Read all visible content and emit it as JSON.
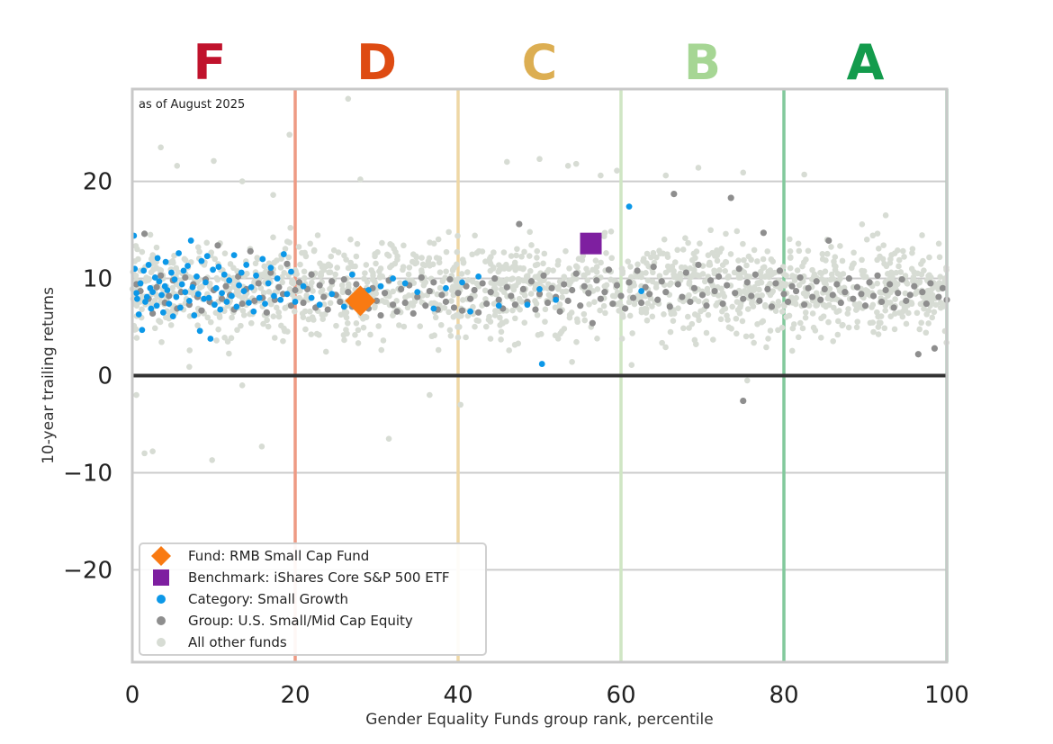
{
  "chart_data": {
    "type": "scatter",
    "annotation": "as of August 2025",
    "xlabel": "Gender Equality Funds group rank, percentile",
    "ylabel": "10-year trailing returns",
    "xlim": [
      0,
      100
    ],
    "ylim": [
      -29.5,
      29.5
    ],
    "x_ticks": [
      "0",
      "20",
      "40",
      "60",
      "80",
      "100"
    ],
    "y_ticks": [
      {
        "value": 20,
        "label": "20"
      },
      {
        "value": 10,
        "label": "10"
      },
      {
        "value": 0,
        "label": "0"
      },
      {
        "value": -10,
        "label": "−10"
      },
      {
        "value": -20,
        "label": "−20"
      }
    ],
    "grid": "horizontal",
    "grades": [
      {
        "label": "F",
        "center": 9.5,
        "color": "#c0122c",
        "boundary": 20,
        "line_color": "#ee9a84"
      },
      {
        "label": "D",
        "center": 30,
        "color": "#de4b12",
        "boundary": 40,
        "line_color": "#eed7a5"
      },
      {
        "label": "C",
        "center": 50,
        "color": "#dcae52",
        "boundary": 60,
        "line_color": "#cfe6c4"
      },
      {
        "label": "B",
        "center": 70,
        "color": "#a6d694",
        "boundary": 80,
        "line_color": "#82c99c"
      },
      {
        "label": "A",
        "center": 90,
        "color": "#139b4c",
        "boundary": 100,
        "line_color": "#92d0a8"
      }
    ],
    "legend": {
      "placement": "lower-left",
      "entries": [
        {
          "label": "Fund: RMB Small Cap Fund",
          "marker": "diamond",
          "color": "#f97a12"
        },
        {
          "label": "Benchmark: iShares Core S&P 500 ETF",
          "marker": "square",
          "color": "#7e1fa0"
        },
        {
          "label": "Category: Small Growth",
          "marker": "dot",
          "color": "#0c98e8"
        },
        {
          "label": "Group: U.S. Small/Mid Cap Equity",
          "marker": "dot",
          "color": "#8e8e8e"
        },
        {
          "label": "All other funds",
          "marker": "dot",
          "color": "#d7dcd4"
        }
      ]
    },
    "fund": {
      "x": 28,
      "y": 7.7
    },
    "benchmark": {
      "x": 56.3,
      "y": 13.6
    },
    "category_points": [
      [
        0.2,
        14.4
      ],
      [
        0.3,
        11.0
      ],
      [
        0.5,
        8.5
      ],
      [
        0.6,
        7.9
      ],
      [
        0.8,
        6.3
      ],
      [
        1.0,
        9.5
      ],
      [
        1.2,
        4.7
      ],
      [
        1.4,
        10.8
      ],
      [
        1.6,
        7.6
      ],
      [
        1.8,
        8.1
      ],
      [
        2.0,
        11.4
      ],
      [
        2.2,
        9.0
      ],
      [
        2.3,
        6.9
      ],
      [
        2.5,
        8.6
      ],
      [
        2.8,
        10.1
      ],
      [
        3.0,
        7.2
      ],
      [
        3.1,
        12.1
      ],
      [
        3.3,
        9.7
      ],
      [
        3.6,
        8.3
      ],
      [
        3.8,
        6.5
      ],
      [
        4.0,
        9.2
      ],
      [
        4.1,
        11.7
      ],
      [
        4.3,
        8.8
      ],
      [
        4.5,
        7.4
      ],
      [
        4.8,
        10.6
      ],
      [
        5.0,
        6.1
      ],
      [
        5.2,
        9.9
      ],
      [
        5.4,
        8.1
      ],
      [
        5.7,
        12.6
      ],
      [
        5.9,
        7.0
      ],
      [
        6.1,
        9.4
      ],
      [
        6.3,
        10.8
      ],
      [
        6.5,
        8.6
      ],
      [
        6.8,
        11.3
      ],
      [
        7.0,
        7.7
      ],
      [
        7.2,
        13.9
      ],
      [
        7.4,
        9.1
      ],
      [
        7.6,
        6.2
      ],
      [
        7.9,
        10.2
      ],
      [
        8.1,
        8.4
      ],
      [
        8.3,
        4.6
      ],
      [
        8.5,
        11.8
      ],
      [
        8.8,
        7.9
      ],
      [
        9.0,
        9.6
      ],
      [
        9.2,
        12.3
      ],
      [
        9.4,
        8.0
      ],
      [
        9.6,
        3.8
      ],
      [
        9.9,
        10.9
      ],
      [
        10.1,
        7.3
      ],
      [
        10.3,
        9.0
      ],
      [
        10.6,
        11.2
      ],
      [
        10.8,
        6.8
      ],
      [
        11.0,
        8.5
      ],
      [
        11.3,
        10.4
      ],
      [
        11.6,
        7.6
      ],
      [
        11.9,
        9.8
      ],
      [
        12.2,
        8.2
      ],
      [
        12.5,
        12.4
      ],
      [
        12.8,
        7.1
      ],
      [
        13.1,
        9.3
      ],
      [
        13.4,
        10.6
      ],
      [
        13.7,
        8.7
      ],
      [
        14.0,
        11.4
      ],
      [
        14.3,
        7.5
      ],
      [
        14.6,
        9.1
      ],
      [
        14.9,
        6.6
      ],
      [
        15.2,
        10.3
      ],
      [
        15.6,
        8.0
      ],
      [
        16.0,
        12.0
      ],
      [
        16.3,
        7.4
      ],
      [
        16.7,
        9.5
      ],
      [
        17.0,
        11.1
      ],
      [
        17.4,
        8.2
      ],
      [
        17.8,
        10.0
      ],
      [
        18.2,
        7.8
      ],
      [
        18.6,
        12.5
      ],
      [
        19.0,
        8.4
      ],
      [
        19.5,
        10.7
      ],
      [
        20.0,
        7.6
      ],
      [
        21.0,
        9.2
      ],
      [
        22.0,
        8.0
      ],
      [
        23.0,
        7.3
      ],
      [
        24.5,
        8.4
      ],
      [
        26.0,
        7.1
      ],
      [
        27.0,
        10.4
      ],
      [
        29.0,
        8.8
      ],
      [
        30.5,
        9.2
      ],
      [
        32.0,
        10.0
      ],
      [
        33.5,
        9.5
      ],
      [
        35.0,
        8.6
      ],
      [
        37.0,
        6.9
      ],
      [
        38.5,
        9.0
      ],
      [
        40.5,
        9.6
      ],
      [
        41.5,
        6.6
      ],
      [
        42.5,
        10.2
      ],
      [
        45.0,
        7.2
      ],
      [
        48.5,
        7.3
      ],
      [
        50.0,
        8.9
      ],
      [
        50.3,
        1.2
      ],
      [
        52.0,
        7.8
      ],
      [
        61.0,
        17.4
      ],
      [
        62.5,
        8.7
      ]
    ],
    "group_points": [
      [
        0.5,
        9.4
      ],
      [
        1.0,
        8.7
      ],
      [
        1.5,
        14.6
      ],
      [
        2.0,
        7.9
      ],
      [
        2.5,
        6.4
      ],
      [
        3.0,
        9.1
      ],
      [
        3.5,
        10.3
      ],
      [
        4.0,
        7.5
      ],
      [
        4.5,
        8.2
      ],
      [
        5.0,
        9.8
      ],
      [
        5.5,
        6.9
      ],
      [
        6.0,
        8.6
      ],
      [
        6.5,
        10.1
      ],
      [
        7.0,
        7.3
      ],
      [
        7.5,
        9.4
      ],
      [
        8.0,
        8.1
      ],
      [
        8.5,
        6.7
      ],
      [
        9.0,
        9.9
      ],
      [
        9.5,
        7.6
      ],
      [
        10.0,
        8.8
      ],
      [
        10.5,
        13.4
      ],
      [
        11.0,
        7.9
      ],
      [
        11.5,
        9.2
      ],
      [
        12.0,
        8.3
      ],
      [
        12.5,
        6.8
      ],
      [
        13.0,
        10.2
      ],
      [
        13.5,
        7.4
      ],
      [
        14.0,
        8.9
      ],
      [
        14.5,
        12.8
      ],
      [
        15.0,
        7.7
      ],
      [
        15.5,
        9.5
      ],
      [
        16.0,
        8.0
      ],
      [
        16.5,
        6.5
      ],
      [
        17.0,
        10.6
      ],
      [
        17.5,
        7.8
      ],
      [
        18.0,
        9.1
      ],
      [
        18.5,
        8.4
      ],
      [
        19.0,
        11.5
      ],
      [
        19.5,
        7.2
      ],
      [
        20.0,
        8.8
      ],
      [
        20.5,
        9.6
      ],
      [
        21.0,
        7.5
      ],
      [
        21.5,
        8.9
      ],
      [
        22.0,
        10.4
      ],
      [
        22.5,
        7.0
      ],
      [
        23.0,
        9.3
      ],
      [
        23.5,
        8.1
      ],
      [
        24.0,
        6.8
      ],
      [
        24.5,
        9.7
      ],
      [
        25.0,
        8.3
      ],
      [
        25.5,
        7.6
      ],
      [
        26.0,
        9.9
      ],
      [
        26.5,
        8.6
      ],
      [
        27.0,
        7.1
      ],
      [
        27.5,
        9.4
      ],
      [
        28.5,
        8.7
      ],
      [
        29.0,
        6.9
      ],
      [
        29.5,
        9.0
      ],
      [
        30.0,
        7.7
      ],
      [
        30.5,
        6.2
      ],
      [
        31.0,
        8.5
      ],
      [
        31.5,
        9.8
      ],
      [
        32.0,
        7.3
      ],
      [
        32.5,
        6.6
      ],
      [
        33.0,
        8.9
      ],
      [
        33.5,
        7.5
      ],
      [
        34.0,
        9.3
      ],
      [
        34.5,
        6.4
      ],
      [
        35.0,
        8.1
      ],
      [
        35.5,
        10.1
      ],
      [
        36.0,
        7.2
      ],
      [
        36.5,
        8.7
      ],
      [
        37.0,
        9.6
      ],
      [
        37.5,
        6.8
      ],
      [
        38.0,
        8.3
      ],
      [
        38.5,
        7.6
      ],
      [
        39.0,
        9.9
      ],
      [
        39.5,
        7.0
      ],
      [
        40.0,
        8.5
      ],
      [
        40.5,
        6.7
      ],
      [
        41.0,
        9.2
      ],
      [
        41.5,
        7.9
      ],
      [
        42.0,
        8.8
      ],
      [
        42.5,
        6.5
      ],
      [
        43.0,
        9.5
      ],
      [
        43.5,
        7.4
      ],
      [
        44.0,
        8.6
      ],
      [
        44.5,
        10.0
      ],
      [
        45.0,
        7.8
      ],
      [
        45.5,
        6.9
      ],
      [
        46.0,
        9.1
      ],
      [
        46.5,
        8.2
      ],
      [
        47.0,
        7.3
      ],
      [
        47.5,
        15.6
      ],
      [
        48.0,
        8.9
      ],
      [
        48.5,
        7.6
      ],
      [
        49.0,
        9.7
      ],
      [
        49.5,
        6.8
      ],
      [
        50.0,
        8.4
      ],
      [
        50.5,
        10.3
      ],
      [
        51.0,
        7.5
      ],
      [
        51.5,
        9.0
      ],
      [
        52.0,
        8.1
      ],
      [
        52.5,
        6.6
      ],
      [
        53.0,
        9.4
      ],
      [
        53.5,
        7.7
      ],
      [
        54.0,
        8.8
      ],
      [
        54.5,
        10.5
      ],
      [
        55.0,
        7.2
      ],
      [
        55.5,
        9.2
      ],
      [
        56.0,
        8.5
      ],
      [
        56.5,
        5.4
      ],
      [
        57.0,
        9.8
      ],
      [
        57.5,
        7.9
      ],
      [
        58.0,
        8.6
      ],
      [
        58.5,
        10.9
      ],
      [
        59.0,
        7.4
      ],
      [
        59.5,
        9.3
      ],
      [
        60.0,
        8.2
      ],
      [
        60.5,
        6.9
      ],
      [
        61.0,
        9.6
      ],
      [
        61.5,
        8.0
      ],
      [
        62.0,
        10.8
      ],
      [
        62.5,
        7.5
      ],
      [
        63.0,
        9.1
      ],
      [
        63.5,
        8.4
      ],
      [
        64.0,
        11.2
      ],
      [
        64.5,
        7.8
      ],
      [
        65.0,
        9.7
      ],
      [
        65.5,
        8.6
      ],
      [
        66.0,
        7.1
      ],
      [
        66.5,
        18.7
      ],
      [
        67.0,
        9.4
      ],
      [
        67.5,
        8.1
      ],
      [
        68.0,
        10.6
      ],
      [
        68.5,
        7.6
      ],
      [
        69.0,
        9.0
      ],
      [
        69.5,
        11.4
      ],
      [
        70.0,
        8.3
      ],
      [
        70.5,
        7.2
      ],
      [
        71.0,
        9.8
      ],
      [
        71.5,
        8.7
      ],
      [
        72.0,
        10.2
      ],
      [
        72.5,
        7.4
      ],
      [
        73.0,
        9.3
      ],
      [
        73.5,
        18.3
      ],
      [
        74.0,
        8.5
      ],
      [
        74.5,
        11.0
      ],
      [
        75.0,
        7.9
      ],
      [
        75.0,
        -2.6
      ],
      [
        75.5,
        9.6
      ],
      [
        76.0,
        8.2
      ],
      [
        76.5,
        10.4
      ],
      [
        77.0,
        7.7
      ],
      [
        77.5,
        14.7
      ],
      [
        78.0,
        8.9
      ],
      [
        78.5,
        7.1
      ],
      [
        79.0,
        9.5
      ],
      [
        79.5,
        10.8
      ],
      [
        80.0,
        8.4
      ],
      [
        80.5,
        7.6
      ],
      [
        81.0,
        9.2
      ],
      [
        81.5,
        8.7
      ],
      [
        82.0,
        10.1
      ],
      [
        82.5,
        7.3
      ],
      [
        83.0,
        9.0
      ],
      [
        83.5,
        8.1
      ],
      [
        84.0,
        9.7
      ],
      [
        84.5,
        7.8
      ],
      [
        85.0,
        8.9
      ],
      [
        85.5,
        13.9
      ],
      [
        86.0,
        8.3
      ],
      [
        86.5,
        9.4
      ],
      [
        87.0,
        7.5
      ],
      [
        87.5,
        8.6
      ],
      [
        88.0,
        10.0
      ],
      [
        88.5,
        7.9
      ],
      [
        89.0,
        9.1
      ],
      [
        89.5,
        8.4
      ],
      [
        90.0,
        7.2
      ],
      [
        90.5,
        9.6
      ],
      [
        91.0,
        8.2
      ],
      [
        91.5,
        10.3
      ],
      [
        92.0,
        7.6
      ],
      [
        92.5,
        8.8
      ],
      [
        93.0,
        9.4
      ],
      [
        93.5,
        7.0
      ],
      [
        94.0,
        8.5
      ],
      [
        94.5,
        9.9
      ],
      [
        95.0,
        7.7
      ],
      [
        95.5,
        8.3
      ],
      [
        96.0,
        9.2
      ],
      [
        96.5,
        2.2
      ],
      [
        97.0,
        8.6
      ],
      [
        97.5,
        7.4
      ],
      [
        98.0,
        9.5
      ],
      [
        98.5,
        2.8
      ],
      [
        99.0,
        8.1
      ],
      [
        99.5,
        9.0
      ],
      [
        100.0,
        7.8
      ]
    ],
    "other_points_summary": {
      "count": 1600,
      "x_range": [
        0,
        100
      ],
      "typical_y_range": [
        2,
        16
      ]
    },
    "other_outliers": [
      [
        3.5,
        23.5
      ],
      [
        5.5,
        21.6
      ],
      [
        10.0,
        22.1
      ],
      [
        13.5,
        20.0
      ],
      [
        17.3,
        18.6
      ],
      [
        19.3,
        24.8
      ],
      [
        26.5,
        28.5
      ],
      [
        28.0,
        20.2
      ],
      [
        46.0,
        22.0
      ],
      [
        50.0,
        22.3
      ],
      [
        53.5,
        21.6
      ],
      [
        54.5,
        21.8
      ],
      [
        57.5,
        20.6
      ],
      [
        59.5,
        21.1
      ],
      [
        65.5,
        20.6
      ],
      [
        69.5,
        21.4
      ],
      [
        75.0,
        20.9
      ],
      [
        82.5,
        20.7
      ],
      [
        92.5,
        16.5
      ],
      [
        1.5,
        -8.0
      ],
      [
        2.5,
        -7.8
      ],
      [
        9.8,
        -8.7
      ],
      [
        15.9,
        -7.3
      ],
      [
        31.5,
        -6.5
      ],
      [
        40.3,
        -3.0
      ],
      [
        36.5,
        -2.0
      ],
      [
        75.5,
        -0.5
      ],
      [
        0.5,
        -2.0
      ],
      [
        13.5,
        -1.0
      ],
      [
        7.0,
        0.9
      ]
    ]
  }
}
